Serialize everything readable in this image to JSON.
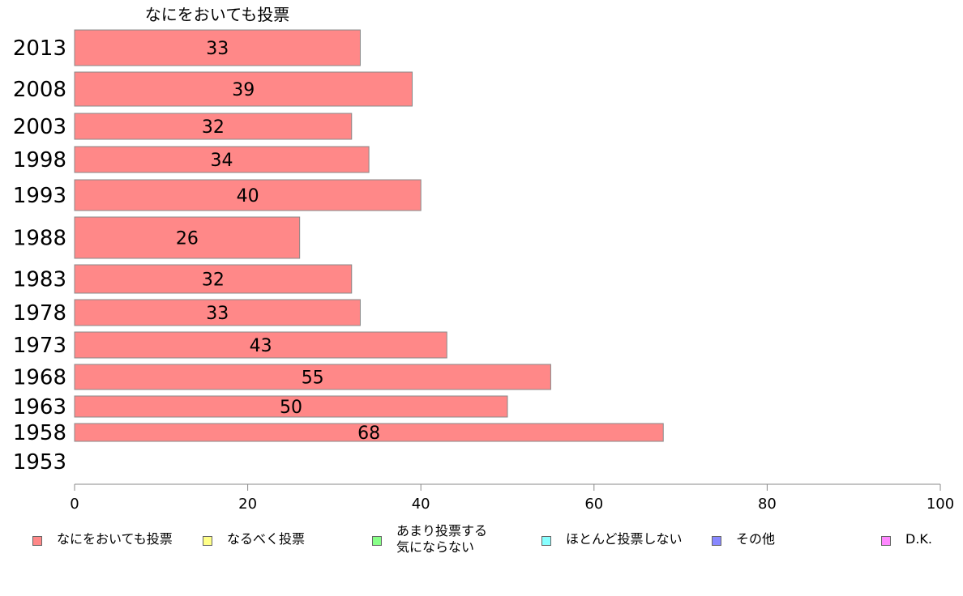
{
  "chart_data": {
    "type": "bar",
    "orientation": "horizontal",
    "title": "なにをおいても投票",
    "categories": [
      "2013",
      "2008",
      "2003",
      "1998",
      "1993",
      "1988",
      "1983",
      "1978",
      "1973",
      "1968",
      "1963",
      "1958",
      "1953"
    ],
    "series": [
      {
        "name": "なにをおいても投票",
        "color": "#ff8888",
        "values": [
          33,
          39,
          32,
          34,
          40,
          26,
          32,
          33,
          43,
          55,
          50,
          68,
          null
        ],
        "labels": [
          "33",
          "39",
          "32",
          "34",
          "40",
          "26",
          "32",
          "33",
          "43",
          "55",
          "50",
          "68",
          ""
        ]
      }
    ],
    "xlim": [
      0,
      100
    ],
    "xticks": [
      "0",
      "20",
      "40",
      "60",
      "80",
      "100"
    ],
    "grid": false,
    "legend_position": "bottom"
  },
  "legend": [
    {
      "label": "なにをおいても投票",
      "color": "#ff8888"
    },
    {
      "label": "なるべく投票",
      "color": "#ffff88"
    },
    {
      "label": "あまり投票する\n気にならない",
      "color": "#88ff88"
    },
    {
      "label": "ほとんど投票しない",
      "color": "#88ffff"
    },
    {
      "label": "その他",
      "color": "#8888ff"
    },
    {
      "label": "D.K.",
      "color": "#ff88ff"
    }
  ]
}
